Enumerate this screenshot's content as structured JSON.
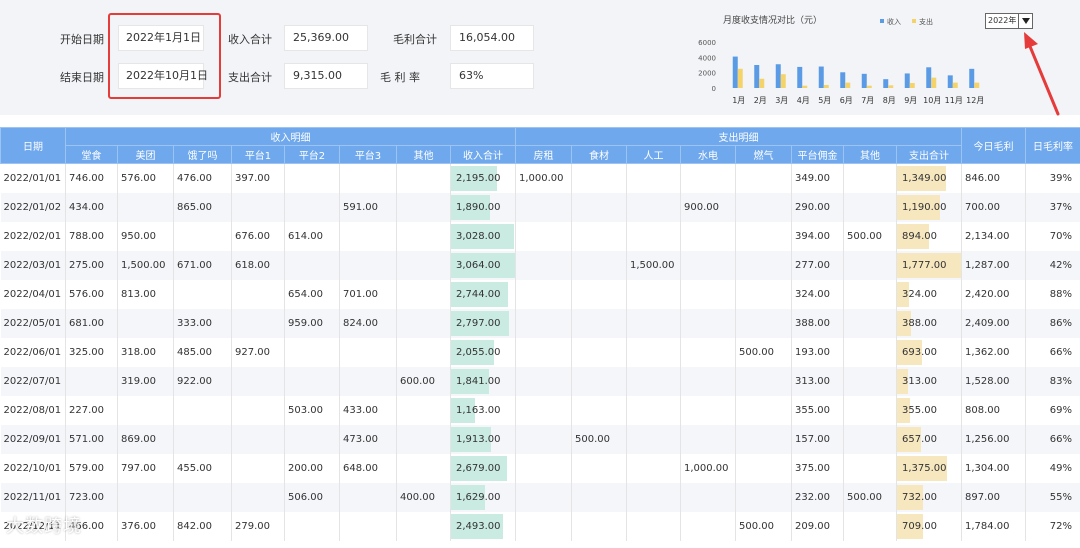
{
  "filters": {
    "start_label": "开始日期",
    "start_value": "2022年1月1日",
    "end_label": "结束日期",
    "end_value": "2022年10月1日"
  },
  "summary": {
    "income_label": "收入合计",
    "income_value": "25,369.00",
    "expense_label": "支出合计",
    "expense_value": "9,315.00",
    "profit_label": "毛利合计",
    "profit_value": "16,054.00",
    "margin_label": "毛 利 率",
    "margin_value": "63%"
  },
  "year_select": {
    "value": "2022年"
  },
  "colors": {
    "income": "#5b9be6",
    "expense": "#f5d36b",
    "header": "#6fa8ec",
    "highlight": "#e63b3b"
  },
  "chart_data": {
    "type": "bar",
    "title": "月度收支情况对比（元）",
    "categories": [
      "1月",
      "2月",
      "3月",
      "4月",
      "5月",
      "6月",
      "7月",
      "8月",
      "9月",
      "10月",
      "11月",
      "12月"
    ],
    "series": [
      {
        "name": "收入",
        "values": [
          4100,
          3000,
          3100,
          2750,
          2800,
          2050,
          1850,
          1150,
          1900,
          2700,
          1650,
          2500
        ]
      },
      {
        "name": "支出",
        "values": [
          2500,
          1200,
          1800,
          300,
          400,
          700,
          300,
          350,
          650,
          1350,
          700,
          700
        ]
      }
    ],
    "yticks": [
      "0",
      "2000",
      "4000",
      "6000"
    ],
    "ylim": [
      0,
      6000
    ],
    "legend": "top-right"
  },
  "table": {
    "group_income": "收入明细",
    "group_expense": "支出明细",
    "h_date": "日期",
    "h_today_profit": "今日毛利",
    "h_today_rate": "日毛利率",
    "income_cols": [
      "堂食",
      "美团",
      "饿了吗",
      "平台1",
      "平台2",
      "平台3",
      "其他",
      "收入合计"
    ],
    "expense_cols": [
      "房租",
      "食材",
      "人工",
      "水电",
      "燃气",
      "平台佣金",
      "其他",
      "支出合计"
    ],
    "rows": [
      {
        "date": "2022/01/01",
        "inc": [
          "746.00",
          "576.00",
          "476.00",
          "397.00",
          "",
          "",
          "",
          "2,195.00"
        ],
        "exp": [
          "1,000.00",
          "",
          "",
          "",
          "",
          "349.00",
          "",
          "1,349.00"
        ],
        "profit": "846.00",
        "rate": "39%"
      },
      {
        "date": "2022/01/02",
        "inc": [
          "434.00",
          "",
          "865.00",
          "",
          "",
          "591.00",
          "",
          "1,890.00"
        ],
        "exp": [
          "",
          "",
          "",
          "900.00",
          "",
          "290.00",
          "",
          "1,190.00"
        ],
        "profit": "700.00",
        "rate": "37%"
      },
      {
        "date": "2022/02/01",
        "inc": [
          "788.00",
          "950.00",
          "",
          "676.00",
          "614.00",
          "",
          "",
          "3,028.00"
        ],
        "exp": [
          "",
          "",
          "",
          "",
          "",
          "394.00",
          "500.00",
          "894.00"
        ],
        "profit": "2,134.00",
        "rate": "70%"
      },
      {
        "date": "2022/03/01",
        "inc": [
          "275.00",
          "1,500.00",
          "671.00",
          "618.00",
          "",
          "",
          "",
          "3,064.00"
        ],
        "exp": [
          "",
          "",
          "1,500.00",
          "",
          "",
          "277.00",
          "",
          "1,777.00"
        ],
        "profit": "1,287.00",
        "rate": "42%"
      },
      {
        "date": "2022/04/01",
        "inc": [
          "576.00",
          "813.00",
          "",
          "",
          "654.00",
          "701.00",
          "",
          "2,744.00"
        ],
        "exp": [
          "",
          "",
          "",
          "",
          "",
          "324.00",
          "",
          "324.00"
        ],
        "profit": "2,420.00",
        "rate": "88%"
      },
      {
        "date": "2022/05/01",
        "inc": [
          "681.00",
          "",
          "333.00",
          "",
          "959.00",
          "824.00",
          "",
          "2,797.00"
        ],
        "exp": [
          "",
          "",
          "",
          "",
          "",
          "388.00",
          "",
          "388.00"
        ],
        "profit": "2,409.00",
        "rate": "86%"
      },
      {
        "date": "2022/06/01",
        "inc": [
          "325.00",
          "318.00",
          "485.00",
          "927.00",
          "",
          "",
          "",
          "2,055.00"
        ],
        "exp": [
          "",
          "",
          "",
          "",
          "500.00",
          "193.00",
          "",
          "693.00"
        ],
        "profit": "1,362.00",
        "rate": "66%"
      },
      {
        "date": "2022/07/01",
        "inc": [
          "",
          "319.00",
          "922.00",
          "",
          "",
          "",
          "600.00",
          "1,841.00"
        ],
        "exp": [
          "",
          "",
          "",
          "",
          "",
          "313.00",
          "",
          "313.00"
        ],
        "profit": "1,528.00",
        "rate": "83%"
      },
      {
        "date": "2022/08/01",
        "inc": [
          "227.00",
          "",
          "",
          "",
          "503.00",
          "433.00",
          "",
          "1,163.00"
        ],
        "exp": [
          "",
          "",
          "",
          "",
          "",
          "355.00",
          "",
          "355.00"
        ],
        "profit": "808.00",
        "rate": "69%"
      },
      {
        "date": "2022/09/01",
        "inc": [
          "571.00",
          "869.00",
          "",
          "",
          "",
          "473.00",
          "",
          "1,913.00"
        ],
        "exp": [
          "",
          "500.00",
          "",
          "",
          "",
          "157.00",
          "",
          "657.00"
        ],
        "profit": "1,256.00",
        "rate": "66%"
      },
      {
        "date": "2022/10/01",
        "inc": [
          "579.00",
          "797.00",
          "455.00",
          "",
          "200.00",
          "648.00",
          "",
          "2,679.00"
        ],
        "exp": [
          "",
          "",
          "",
          "1,000.00",
          "",
          "375.00",
          "",
          "1,375.00"
        ],
        "profit": "1,304.00",
        "rate": "49%"
      },
      {
        "date": "2022/11/01",
        "inc": [
          "723.00",
          "",
          "",
          "",
          "506.00",
          "",
          "400.00",
          "1,629.00"
        ],
        "exp": [
          "",
          "",
          "",
          "",
          "",
          "232.00",
          "500.00",
          "732.00"
        ],
        "profit": "897.00",
        "rate": "55%"
      },
      {
        "date": "2022/12/11",
        "inc": [
          "466.00",
          "376.00",
          "842.00",
          "279.00",
          "",
          "",
          "",
          "2,493.00"
        ],
        "exp": [
          "",
          "",
          "",
          "",
          "500.00",
          "209.00",
          "",
          "709.00"
        ],
        "profit": "1,784.00",
        "rate": "72%"
      }
    ]
  },
  "watermark": "大数跨境"
}
